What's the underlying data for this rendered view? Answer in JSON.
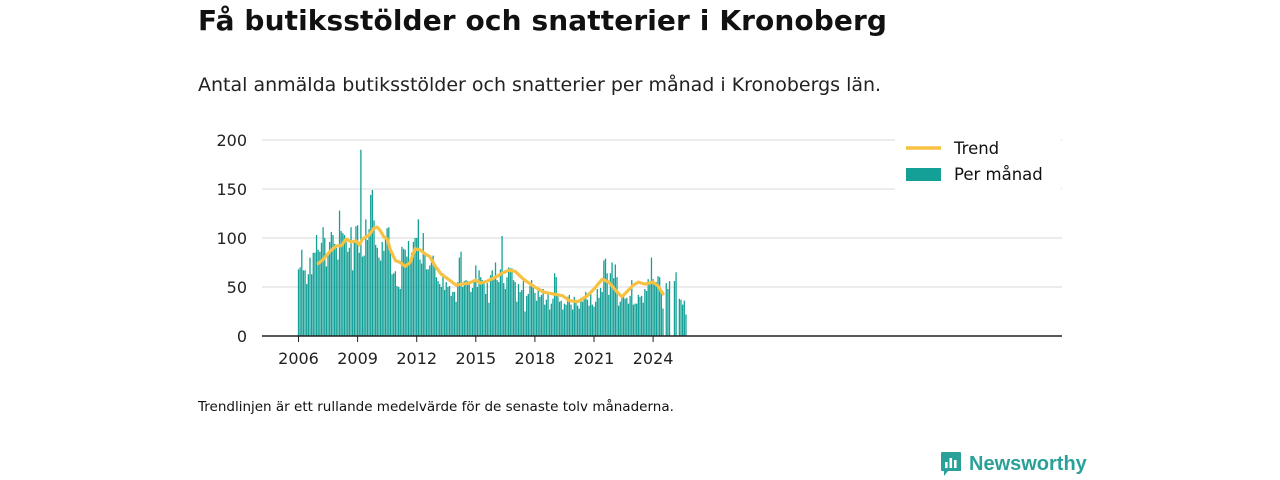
{
  "title": "Få butiksstölder och snatterier i Kronoberg",
  "subtitle": "Antal anmälda butiksstölder och snatterier per månad i Kronobergs län.",
  "note": "Trendlinjen är ett rullande medelvärde för de senaste tolv månaderna.",
  "brand": {
    "name": "Newsworthy"
  },
  "colors": {
    "bar": "#14a096",
    "trend": "#f7c244",
    "grid": "#d9d9d9",
    "axis": "#222222"
  },
  "chart_data": {
    "type": "bar",
    "start_month": "2006-01",
    "x_ticks": [
      2006,
      2009,
      2012,
      2015,
      2018,
      2021,
      2024
    ],
    "y_ticks": [
      0,
      50,
      100,
      150,
      200
    ],
    "ylim": [
      0,
      200
    ],
    "grid": true,
    "legend_position": "top-right",
    "series": [
      {
        "name": "Per månad",
        "type": "bar",
        "values": [
          68,
          70,
          88,
          67,
          67,
          53,
          63,
          80,
          63,
          85,
          85,
          103,
          88,
          86,
          95,
          111,
          100,
          71,
          85,
          96,
          106,
          103,
          94,
          90,
          78,
          128,
          107,
          105,
          103,
          96,
          86,
          90,
          111,
          67,
          97,
          112,
          113,
          85,
          190,
          81,
          82,
          119,
          98,
          109,
          144,
          149,
          118,
          93,
          90,
          80,
          77,
          96,
          87,
          99,
          110,
          111,
          90,
          63,
          64,
          66,
          51,
          50,
          48,
          91,
          89,
          88,
          81,
          97,
          75,
          85,
          96,
          100,
          100,
          119,
          78,
          74,
          105,
          85,
          68,
          68,
          72,
          75,
          82,
          73,
          60,
          56,
          53,
          50,
          64,
          47,
          55,
          50,
          51,
          41,
          45,
          45,
          35,
          55,
          80,
          86,
          50,
          56,
          57,
          56,
          55,
          45,
          49,
          55,
          72,
          50,
          67,
          60,
          57,
          55,
          43,
          54,
          34,
          62,
          67,
          58,
          75,
          57,
          55,
          68,
          102,
          54,
          48,
          60,
          70,
          69,
          69,
          57,
          55,
          35,
          53,
          45,
          47,
          56,
          25,
          41,
          43,
          51,
          57,
          52,
          44,
          36,
          47,
          40,
          42,
          48,
          32,
          37,
          44,
          27,
          33,
          38,
          64,
          60,
          42,
          35,
          36,
          27,
          33,
          32,
          40,
          42,
          32,
          27,
          40,
          37,
          31,
          28,
          39,
          35,
          41,
          45,
          37,
          31,
          45,
          32,
          30,
          35,
          48,
          39,
          49,
          45,
          77,
          79,
          64,
          42,
          64,
          75,
          59,
          73,
          60,
          31,
          35,
          41,
          40,
          38,
          39,
          33,
          41,
          57,
          32,
          33,
          33,
          42,
          40,
          41,
          34,
          48,
          46,
          58,
          55,
          80,
          58,
          53,
          55,
          61,
          60,
          44,
          28,
          0,
          54,
          48,
          56,
          0,
          0,
          56,
          65,
          0,
          38,
          37,
          32,
          36,
          22
        ]
      },
      {
        "name": "Trend",
        "type": "line",
        "start_month": "2007-01",
        "points": [
          [
            "2007-01",
            74
          ],
          [
            "2007-04",
            78
          ],
          [
            "2007-08",
            86
          ],
          [
            "2007-12",
            92
          ],
          [
            "2008-03",
            92
          ],
          [
            "2008-06",
            99
          ],
          [
            "2008-09",
            96
          ],
          [
            "2008-12",
            97
          ],
          [
            "2009-02",
            93
          ],
          [
            "2009-04",
            99
          ],
          [
            "2009-08",
            103
          ],
          [
            "2009-11",
            110
          ],
          [
            "2010-01",
            111
          ],
          [
            "2010-03",
            107
          ],
          [
            "2010-05",
            101
          ],
          [
            "2010-07",
            99
          ],
          [
            "2010-09",
            88
          ],
          [
            "2010-12",
            77
          ],
          [
            "2011-03",
            75
          ],
          [
            "2011-06",
            71
          ],
          [
            "2011-09",
            75
          ],
          [
            "2011-12",
            89
          ],
          [
            "2012-03",
            88
          ],
          [
            "2012-06",
            84
          ],
          [
            "2012-09",
            81
          ],
          [
            "2012-12",
            72
          ],
          [
            "2013-04",
            63
          ],
          [
            "2013-09",
            57
          ],
          [
            "2014-01",
            52
          ],
          [
            "2014-05",
            53
          ],
          [
            "2014-09",
            54
          ],
          [
            "2015-01",
            57
          ],
          [
            "2015-04",
            54
          ],
          [
            "2015-08",
            56
          ],
          [
            "2016-01",
            60
          ],
          [
            "2016-05",
            64
          ],
          [
            "2016-09",
            67
          ],
          [
            "2017-01",
            66
          ],
          [
            "2017-06",
            58
          ],
          [
            "2017-12",
            51
          ],
          [
            "2018-06",
            45
          ],
          [
            "2018-12",
            43
          ],
          [
            "2019-06",
            41
          ],
          [
            "2019-10",
            36
          ],
          [
            "2020-03",
            35
          ],
          [
            "2020-09",
            41
          ],
          [
            "2021-01",
            48
          ],
          [
            "2021-06",
            58
          ],
          [
            "2021-10",
            55
          ],
          [
            "2022-03",
            45
          ],
          [
            "2022-06",
            40
          ],
          [
            "2022-09",
            45
          ],
          [
            "2023-01",
            52
          ],
          [
            "2023-04",
            55
          ],
          [
            "2023-08",
            53
          ],
          [
            "2024-01",
            55
          ],
          [
            "2024-04",
            51
          ],
          [
            "2024-07",
            43
          ]
        ]
      }
    ]
  }
}
